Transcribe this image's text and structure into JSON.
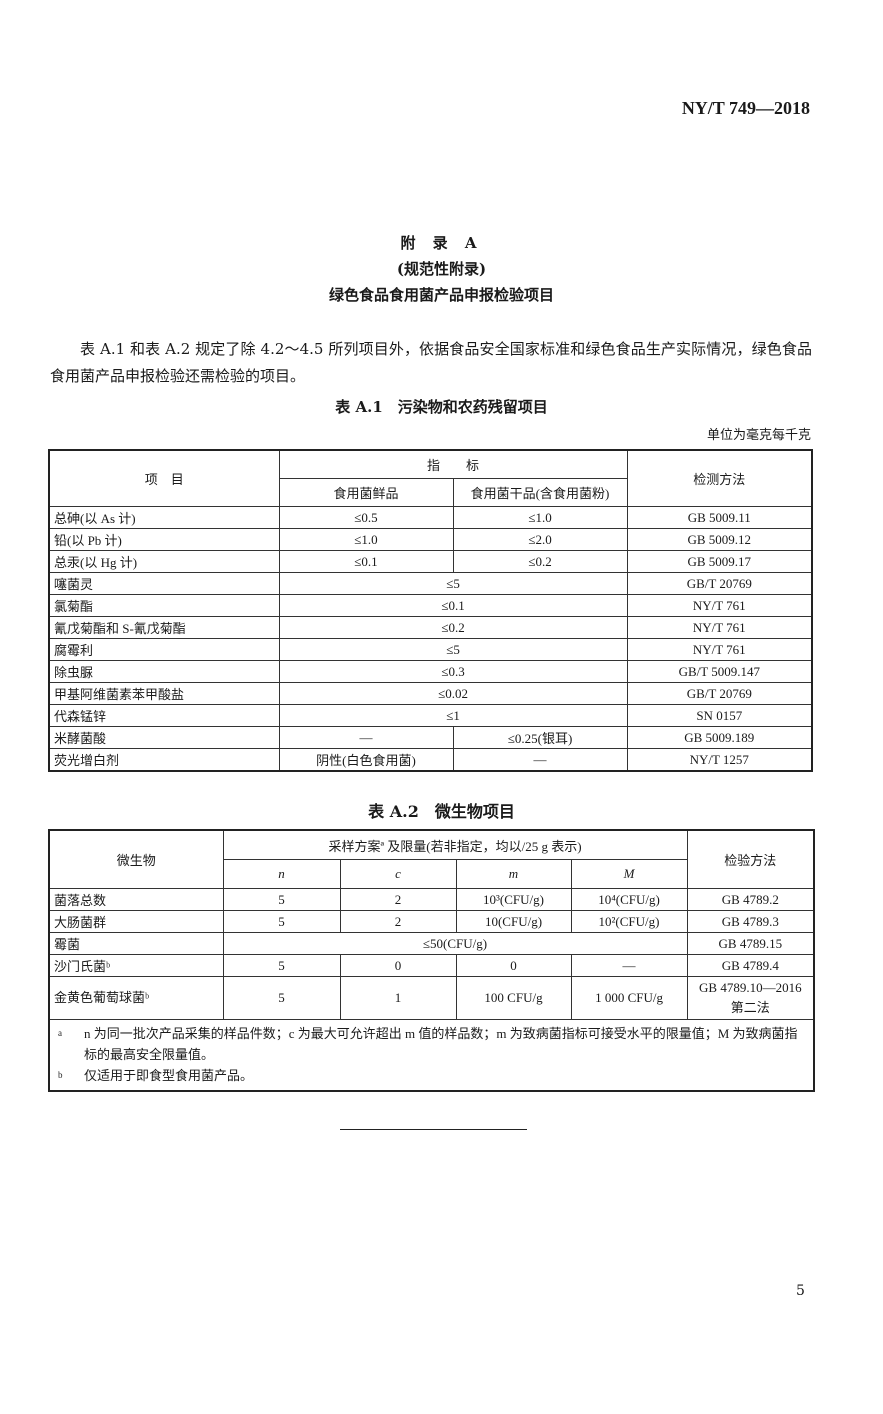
{
  "header": {
    "standard_code": "NY/T 749—2018"
  },
  "appendix": {
    "label": "附 录 A",
    "type": "(规范性附录)",
    "title": "绿色食品食用菌产品申报检验项目"
  },
  "intro": "表 A.1 和表 A.2 规定了除 4.2～4.5 所列项目外，依据食品安全国家标准和绿色食品生产实际情况，绿色食品食用菌产品申报检验还需检验的项目。",
  "table_a1": {
    "caption": "表 A.1　污染物和农药残留项目",
    "unit": "单位为毫克每千克",
    "headers": {
      "item": "项　目",
      "indicator": "指　　标",
      "fresh": "食用菌鲜品",
      "dried": "食用菌干品(含食用菌粉)",
      "method": "检测方法"
    },
    "rows": [
      {
        "item": "总砷(以 As 计)",
        "fresh": "≤0.5",
        "dried": "≤1.0",
        "method": "GB 5009.11"
      },
      {
        "item": "铅(以 Pb 计)",
        "fresh": "≤1.0",
        "dried": "≤2.0",
        "method": "GB 5009.12"
      },
      {
        "item": "总汞(以 Hg 计)",
        "fresh": "≤0.1",
        "dried": "≤0.2",
        "method": "GB 5009.17"
      },
      {
        "item": "噻菌灵",
        "both": "≤5",
        "method": "GB/T 20769"
      },
      {
        "item": "氯菊酯",
        "both": "≤0.1",
        "method": "NY/T 761"
      },
      {
        "item": "氰戊菊酯和 S-氰戊菊酯",
        "both": "≤0.2",
        "method": "NY/T 761"
      },
      {
        "item": "腐霉利",
        "both": "≤5",
        "method": "NY/T 761"
      },
      {
        "item": "除虫脲",
        "both": "≤0.3",
        "method": "GB/T 5009.147"
      },
      {
        "item": "甲基阿维菌素苯甲酸盐",
        "both": "≤0.02",
        "method": "GB/T 20769"
      },
      {
        "item": "代森锰锌",
        "both": "≤1",
        "method": "SN 0157"
      },
      {
        "item": "米酵菌酸",
        "fresh": "—",
        "dried": "≤0.25(银耳)",
        "method": "GB 5009.189"
      },
      {
        "item": "荧光增白剂",
        "fresh": "阴性(白色食用菌)",
        "dried": "—",
        "method": "NY/T 1257"
      }
    ]
  },
  "table_a2": {
    "caption": "表 A.2　微生物项目",
    "headers": {
      "organism": "微生物",
      "plan": "采样方案ª 及限量(若非指定，均以/25 g 表示)",
      "n": "n",
      "c": "c",
      "m": "m",
      "M": "M",
      "method": "检验方法"
    },
    "rows": [
      {
        "organism": "菌落总数",
        "n": "5",
        "c": "2",
        "m": "10³(CFU/g)",
        "M": "10⁴(CFU/g)",
        "method": "GB 4789.2"
      },
      {
        "organism": "大肠菌群",
        "n": "5",
        "c": "2",
        "m": "10(CFU/g)",
        "M": "10²(CFU/g)",
        "method": "GB 4789.3"
      },
      {
        "organism": "霉菌",
        "merged": "≤50(CFU/g)",
        "method": "GB 4789.15"
      },
      {
        "organism": "沙门氏菌ᵇ",
        "n": "5",
        "c": "0",
        "m": "0",
        "M": "—",
        "method": "GB 4789.4"
      },
      {
        "organism": "金黄色葡萄球菌ᵇ",
        "n": "5",
        "c": "1",
        "m": "100 CFU/g",
        "M": "1 000 CFU/g",
        "method": "GB 4789.10—2016",
        "method_note": "第二法"
      }
    ],
    "footnotes": [
      {
        "mark": "a",
        "text": "n 为同一批次产品采集的样品件数；c 为最大可允许超出 m 值的样品数；m 为致病菌指标可接受水平的限量值；M 为致病菌指标的最高安全限量值。"
      },
      {
        "mark": "b",
        "text": "仅适用于即食型食用菌产品。"
      }
    ]
  },
  "page_number": "5"
}
